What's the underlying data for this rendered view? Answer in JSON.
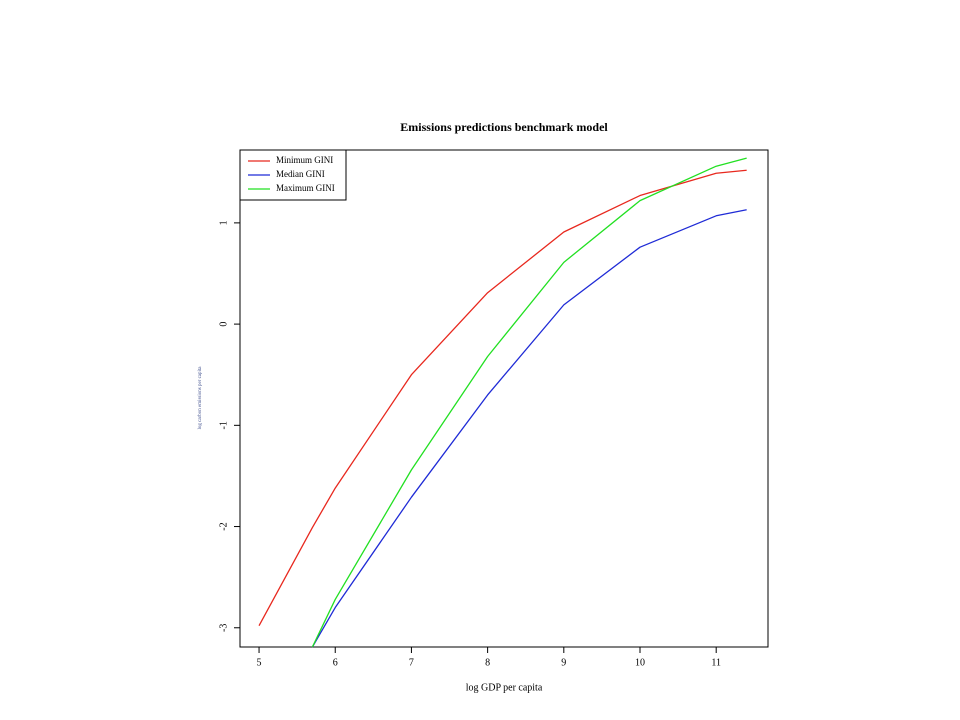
{
  "chart_data": {
    "type": "line",
    "title": "Emissions predictions benchmark model",
    "xlabel": "log GDP per capita",
    "ylabel": "log carbon emissions per capita",
    "x": [
      5,
      5.7,
      6,
      7,
      8,
      9,
      10,
      11,
      11.4
    ],
    "series": [
      {
        "name": "Minimum GINI",
        "color": "#e8281e",
        "values": [
          -2.98,
          -2.01,
          -1.62,
          -0.5,
          0.31,
          0.91,
          1.27,
          1.49,
          1.52
        ]
      },
      {
        "name": "Median GINI",
        "color": "#1f2bd6",
        "values": [
          null,
          -3.19,
          -2.8,
          -1.71,
          -0.7,
          0.19,
          0.76,
          1.07,
          1.13
        ]
      },
      {
        "name": "Maximum GINI",
        "color": "#22e022",
        "values": [
          null,
          -3.19,
          -2.72,
          -1.44,
          -0.32,
          0.61,
          1.22,
          1.56,
          1.64
        ]
      }
    ],
    "xlim": [
      4.75,
      11.68
    ],
    "ylim": [
      -3.19,
      1.72
    ],
    "xticks": [
      5,
      6,
      7,
      8,
      9,
      10,
      11
    ],
    "yticks": [
      -3,
      -2,
      -1,
      0,
      1
    ],
    "legend": "top-left"
  }
}
